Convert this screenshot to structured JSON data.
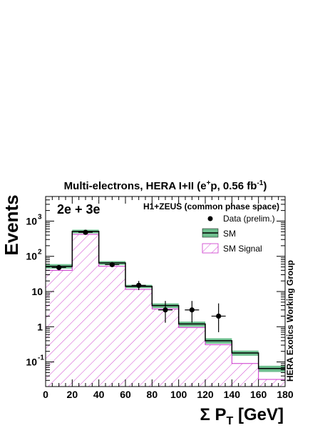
{
  "chart_data": {
    "type": "bar",
    "title": "Multi-electrons, HERA I+II (e",
    "title_sup1": "+",
    "title_mid": "p, 0.56 fb",
    "title_sup2": "-1",
    "title_end": ")",
    "channel_label": "2e + 3e",
    "subtitle": "H1+ZEUS (common phase space)",
    "side_label": "HERA Exotics Working Group",
    "ylabel": "Events",
    "xlabel_prefix": "Σ P",
    "xlabel_sub": "T",
    "xlabel_suffix": " [GeV]",
    "y_scale": "log",
    "ylim": [
      0.02,
      5000
    ],
    "xlim": [
      0,
      180
    ],
    "x_ticks": [
      "0",
      "20",
      "40",
      "60",
      "80",
      "100",
      "120",
      "140",
      "160",
      "180"
    ],
    "y_ticks": [
      {
        "value": 0.1,
        "base": "10",
        "exp": "-1"
      },
      {
        "value": 1,
        "base": "1",
        "exp": ""
      },
      {
        "value": 10,
        "base": "10",
        "exp": ""
      },
      {
        "value": 100,
        "base": "10",
        "exp": "2"
      },
      {
        "value": 1000,
        "base": "10",
        "exp": "3"
      }
    ],
    "bin_edges": [
      0,
      20,
      40,
      60,
      80,
      100,
      120,
      140,
      160,
      180
    ],
    "series": [
      {
        "name": "Data (prelim.)",
        "x": [
          10,
          30,
          50,
          70,
          90,
          110,
          130
        ],
        "values": [
          48,
          480,
          58,
          15,
          3,
          3,
          2
        ],
        "err_low": [
          7,
          22,
          8,
          4,
          1.7,
          1.7,
          1.3
        ],
        "err_high": [
          7,
          22,
          8,
          5,
          2.4,
          2.4,
          2.6
        ]
      },
      {
        "name": "SM",
        "values": [
          52,
          510,
          65,
          14,
          4,
          1.2,
          0.4,
          0.18,
          0.065
        ],
        "unc_low": [
          45,
          450,
          57,
          12.5,
          3.4,
          1.0,
          0.33,
          0.15,
          0.052
        ],
        "unc_high": [
          60,
          570,
          73,
          15.5,
          4.6,
          1.4,
          0.47,
          0.21,
          0.078
        ]
      },
      {
        "name": "SM Signal",
        "values": [
          40,
          420,
          52,
          11.5,
          3.2,
          0.95,
          0.31,
          0.09,
          0.032
        ]
      }
    ],
    "colors": {
      "sm_band": "#6fbf8f",
      "sm_line": "#000000",
      "signal": "#cc33cc",
      "data": "#000000"
    },
    "grid": false,
    "legend_position": "top-right"
  }
}
